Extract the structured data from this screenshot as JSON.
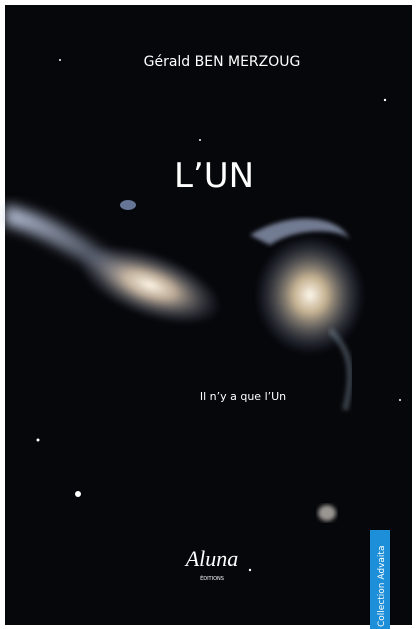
{
  "cover": {
    "author": "Gérald BEN MERZOUG",
    "title": "L’UN",
    "subtitle": "Il n’y a que l’Un",
    "publisher": "Aluna",
    "publisher_sub": "ÉDITIONS",
    "collection": "Collection Advaita"
  }
}
